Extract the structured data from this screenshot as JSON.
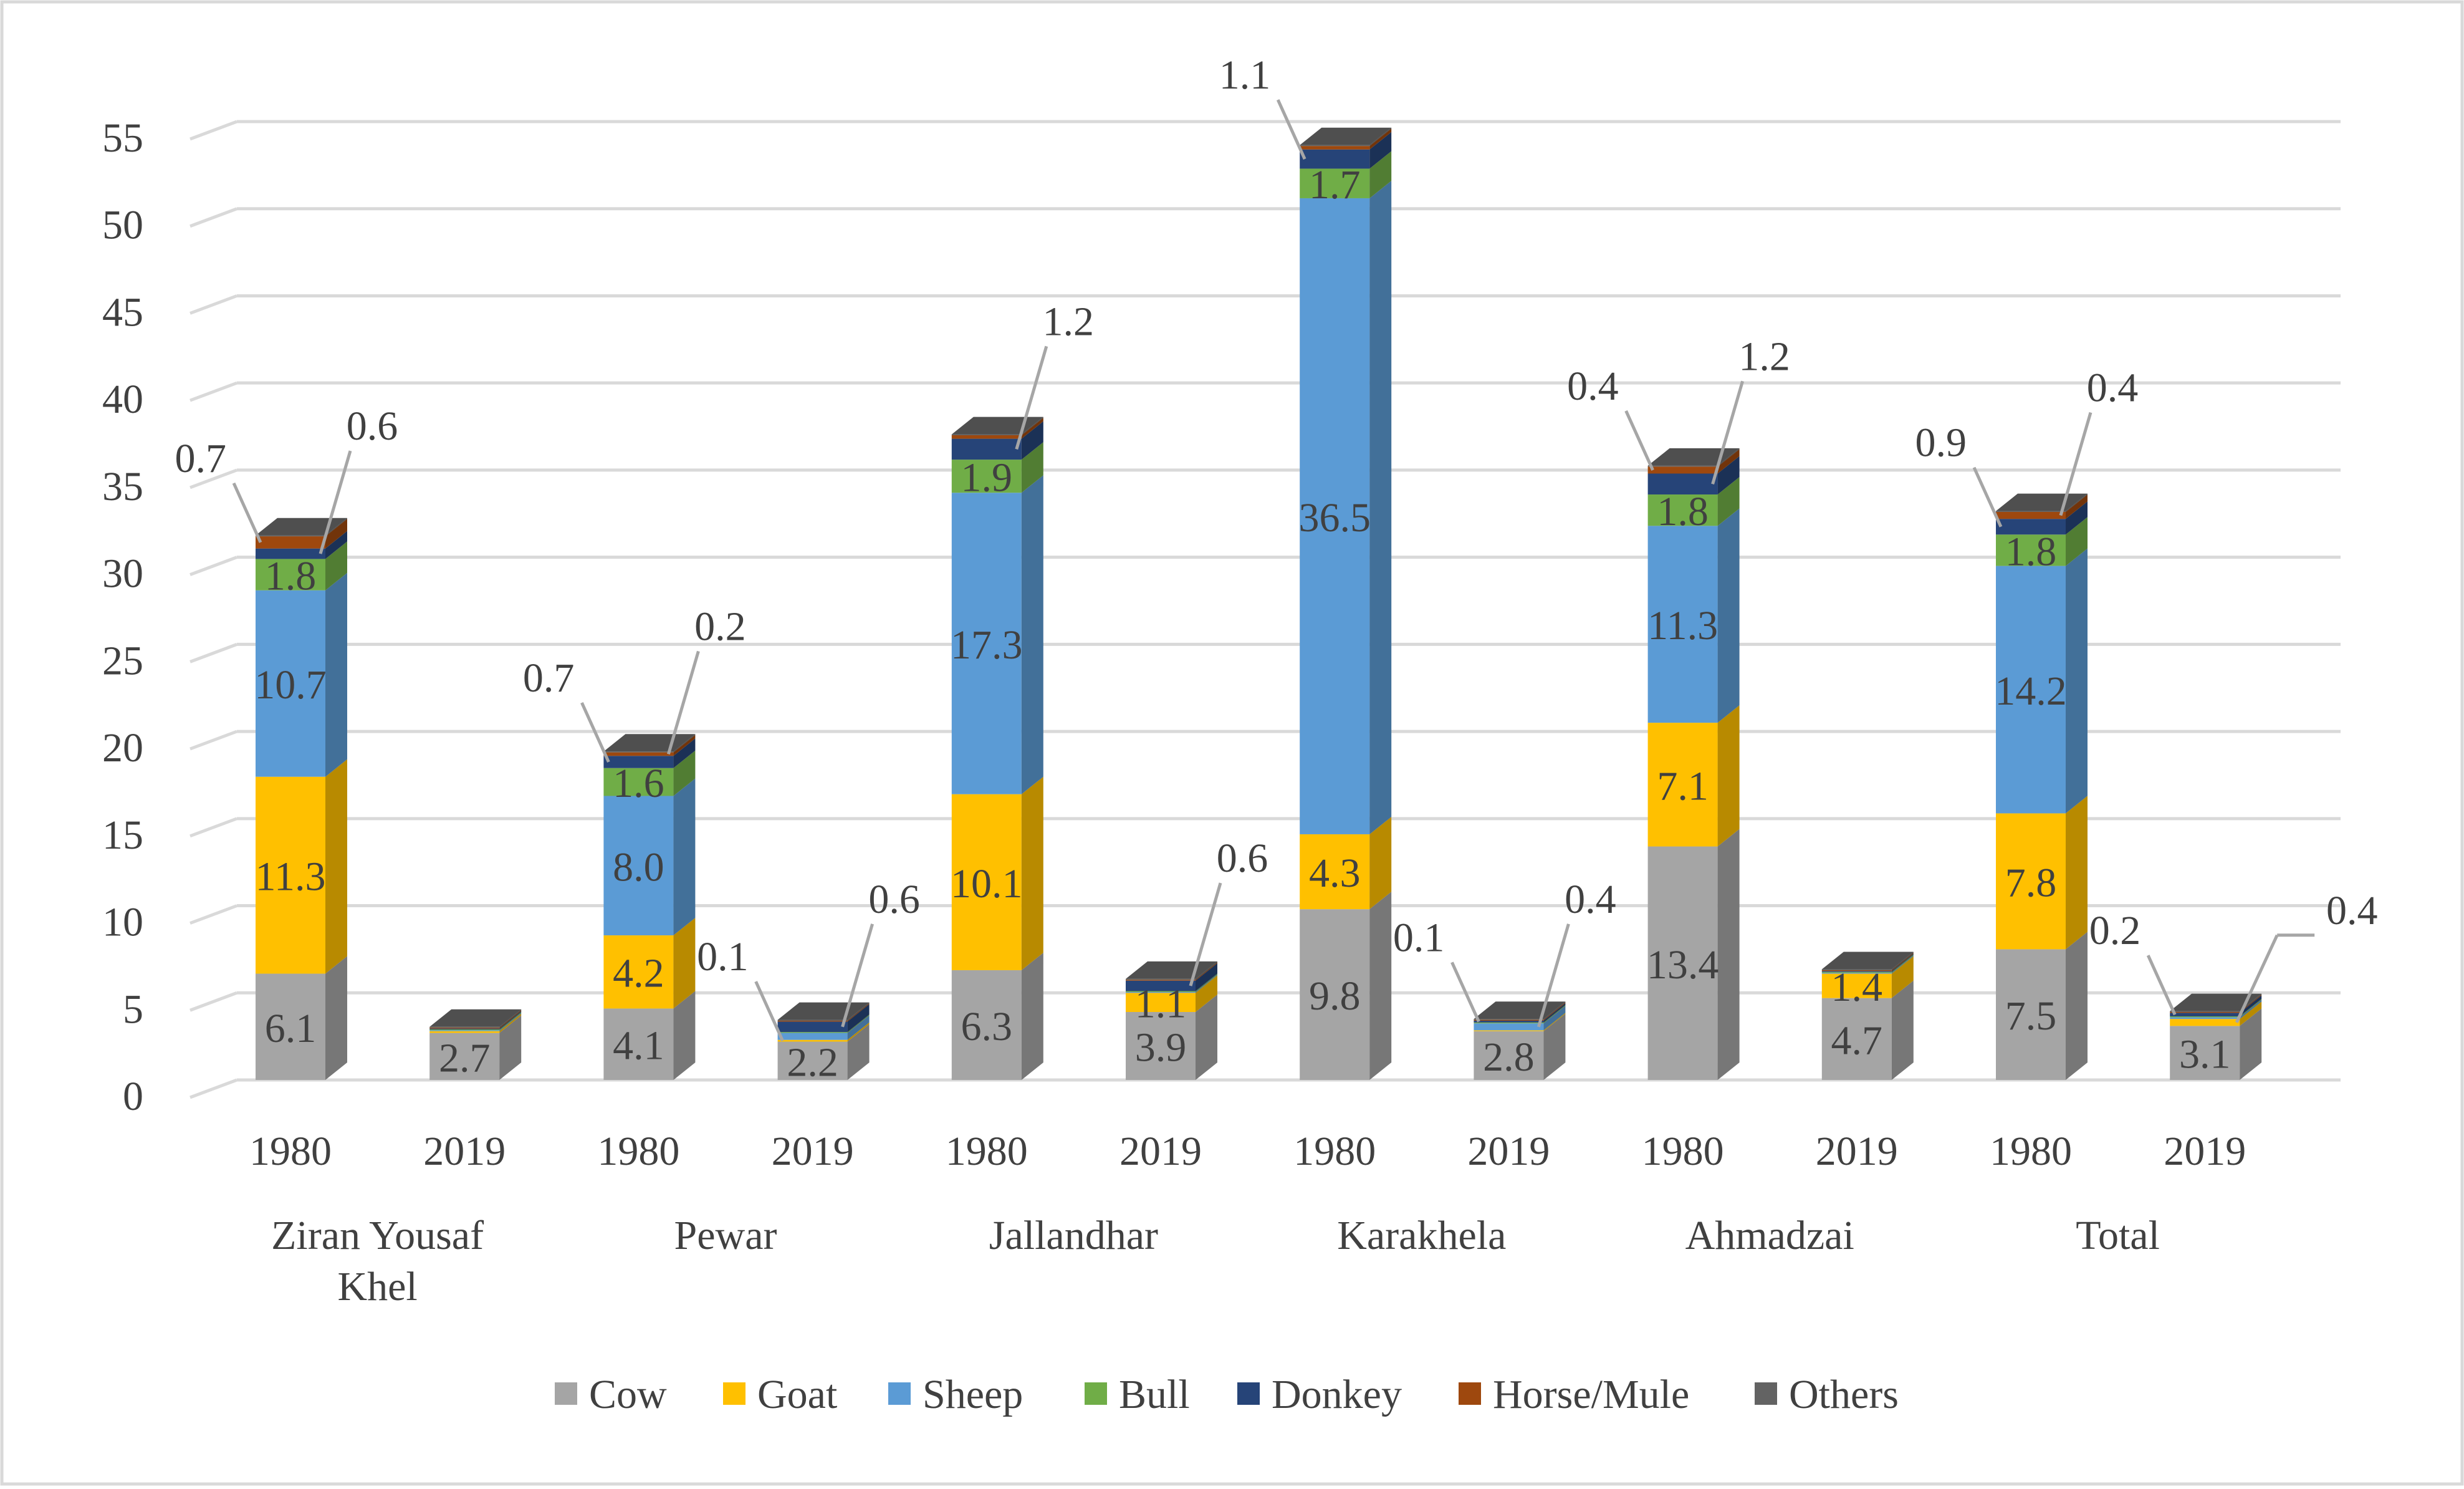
{
  "chart_data": {
    "type": "bar",
    "stacked": true,
    "three_d": true,
    "title": "",
    "xlabel": "",
    "ylabel": "",
    "ylim": [
      0,
      55
    ],
    "yticks": [
      0,
      5,
      10,
      15,
      20,
      25,
      30,
      35,
      40,
      45,
      50,
      55
    ],
    "grid": true,
    "legend_position": "bottom",
    "groups": [
      "Ziran Yousaf Khel",
      "Pewar",
      "Jallandhar",
      "Karakhela",
      "Ahmadzai",
      "Total"
    ],
    "years": [
      "1980",
      "2019",
      "1980",
      "2019",
      "1980",
      "2019",
      "1980",
      "2019",
      "1980",
      "2019",
      "1980",
      "2019"
    ],
    "series": [
      {
        "name": "Cow",
        "color": "#A5A5A5",
        "values": [
          6.1,
          2.7,
          4.1,
          2.2,
          6.3,
          3.9,
          9.8,
          2.8,
          13.4,
          4.7,
          7.5,
          3.1
        ]
      },
      {
        "name": "Goat",
        "color": "#FFC000",
        "values": [
          11.3,
          0.1,
          4.2,
          0.1,
          10.1,
          1.1,
          4.3,
          0.05,
          7.1,
          1.4,
          7.8,
          0.4
        ]
      },
      {
        "name": "Sheep",
        "color": "#5B9BD5",
        "values": [
          10.7,
          0.05,
          8.0,
          0.4,
          17.3,
          0.05,
          36.5,
          0.4,
          11.3,
          0.05,
          14.2,
          0.1
        ]
      },
      {
        "name": "Bull",
        "color": "#70AD47",
        "values": [
          1.8,
          0.05,
          1.6,
          0.05,
          1.9,
          0.05,
          1.7,
          0.05,
          1.8,
          0.05,
          1.8,
          0.05
        ]
      },
      {
        "name": "Donkey",
        "color": "#264478",
        "values": [
          0.6,
          0.05,
          0.7,
          0.6,
          1.2,
          0.6,
          1.1,
          0.1,
          1.2,
          0.05,
          0.9,
          0.2
        ]
      },
      {
        "name": "Horse/Mule",
        "color": "#9E480E",
        "values": [
          0.7,
          0.05,
          0.2,
          0.05,
          0.2,
          0.05,
          0.2,
          0.05,
          0.4,
          0.05,
          0.4,
          0.05
        ]
      },
      {
        "name": "Others",
        "color": "#636363",
        "values": [
          0.05,
          0.05,
          0.05,
          0.05,
          0.05,
          0.05,
          0.05,
          0.05,
          0.05,
          0.05,
          0.05,
          0.05
        ]
      }
    ],
    "data_labels": [
      {
        "bar": 0,
        "series": "Cow",
        "text": "6.1"
      },
      {
        "bar": 0,
        "series": "Goat",
        "text": "11.3"
      },
      {
        "bar": 0,
        "series": "Sheep",
        "text": "10.7"
      },
      {
        "bar": 0,
        "series": "Bull",
        "text": "1.8"
      },
      {
        "bar": 0,
        "series": "Horse/Mule",
        "text": "0.7",
        "callout": "upper-left"
      },
      {
        "bar": 0,
        "series": "Donkey",
        "text": "0.6",
        "callout": "upper-right"
      },
      {
        "bar": 1,
        "series": "Cow",
        "text": "2.7"
      },
      {
        "bar": 2,
        "series": "Cow",
        "text": "4.1"
      },
      {
        "bar": 2,
        "series": "Goat",
        "text": "4.2"
      },
      {
        "bar": 2,
        "series": "Sheep",
        "text": "8.0"
      },
      {
        "bar": 2,
        "series": "Bull",
        "text": "1.6"
      },
      {
        "bar": 2,
        "series": "Donkey",
        "text": "0.7",
        "callout": "upper-left"
      },
      {
        "bar": 2,
        "series": "Horse/Mule",
        "text": "0.2",
        "callout": "upper-right"
      },
      {
        "bar": 3,
        "series": "Cow",
        "text": "2.2"
      },
      {
        "bar": 3,
        "series": "Goat",
        "text": "0.1",
        "callout": "upper-left"
      },
      {
        "bar": 3,
        "series": "Donkey",
        "text": "0.6",
        "callout": "upper-right"
      },
      {
        "bar": 4,
        "series": "Cow",
        "text": "6.3"
      },
      {
        "bar": 4,
        "series": "Goat",
        "text": "10.1"
      },
      {
        "bar": 4,
        "series": "Sheep",
        "text": "17.3"
      },
      {
        "bar": 4,
        "series": "Bull",
        "text": "1.9"
      },
      {
        "bar": 4,
        "series": "Donkey",
        "text": "1.2",
        "callout": "upper-right"
      },
      {
        "bar": 5,
        "series": "Cow",
        "text": "3.9"
      },
      {
        "bar": 5,
        "series": "Goat",
        "text": "1.1"
      },
      {
        "bar": 5,
        "series": "Donkey",
        "text": "0.6",
        "callout": "upper-right"
      },
      {
        "bar": 6,
        "series": "Cow",
        "text": "9.8"
      },
      {
        "bar": 6,
        "series": "Goat",
        "text": "4.3"
      },
      {
        "bar": 6,
        "series": "Sheep",
        "text": "36.5"
      },
      {
        "bar": 6,
        "series": "Bull",
        "text": "1.7"
      },
      {
        "bar": 6,
        "series": "Donkey",
        "text": "1.1",
        "callout": "upper-left"
      },
      {
        "bar": 7,
        "series": "Cow",
        "text": "2.8"
      },
      {
        "bar": 7,
        "series": "Donkey",
        "text": "0.1",
        "callout": "upper-left"
      },
      {
        "bar": 7,
        "series": "Sheep",
        "text": "0.4",
        "callout": "upper-right"
      },
      {
        "bar": 8,
        "series": "Cow",
        "text": "13.4"
      },
      {
        "bar": 8,
        "series": "Goat",
        "text": "7.1"
      },
      {
        "bar": 8,
        "series": "Sheep",
        "text": "11.3"
      },
      {
        "bar": 8,
        "series": "Bull",
        "text": "1.8"
      },
      {
        "bar": 8,
        "series": "Horse/Mule",
        "text": "0.4",
        "callout": "upper-left"
      },
      {
        "bar": 8,
        "series": "Donkey",
        "text": "1.2",
        "callout": "upper-right"
      },
      {
        "bar": 9,
        "series": "Cow",
        "text": "4.7"
      },
      {
        "bar": 9,
        "series": "Goat",
        "text": "1.4"
      },
      {
        "bar": 10,
        "series": "Cow",
        "text": "7.5"
      },
      {
        "bar": 10,
        "series": "Goat",
        "text": "7.8"
      },
      {
        "bar": 10,
        "series": "Sheep",
        "text": "14.2"
      },
      {
        "bar": 10,
        "series": "Bull",
        "text": "1.8"
      },
      {
        "bar": 10,
        "series": "Donkey",
        "text": "0.9",
        "callout": "upper-left"
      },
      {
        "bar": 10,
        "series": "Horse/Mule",
        "text": "0.4",
        "callout": "upper-right"
      },
      {
        "bar": 11,
        "series": "Cow",
        "text": "3.1"
      },
      {
        "bar": 11,
        "series": "Donkey",
        "text": "0.2",
        "callout": "upper-left"
      },
      {
        "bar": 11,
        "series": "Goat",
        "text": "0.4",
        "callout": "right"
      }
    ]
  }
}
